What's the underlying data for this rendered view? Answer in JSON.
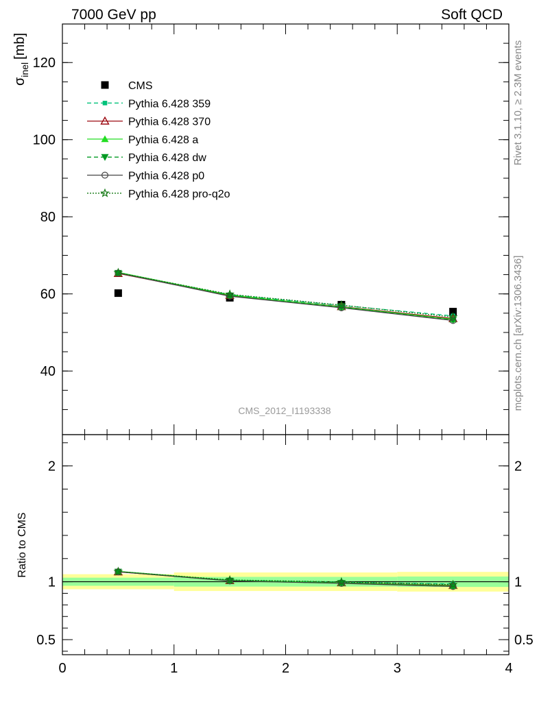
{
  "header": {
    "left": "7000 GeV pp",
    "right": "Soft QCD"
  },
  "side": {
    "rivet": "Rivet 3.1.10, ≥ 2.3M events",
    "mcplots": "mcplots.cern.ch [arXiv:1306.3436]"
  },
  "analysis_id": "CMS_2012_I1193338",
  "colors": {
    "band_inner": "#99ff99",
    "band_outer": "#ffff99",
    "cms": "#000000",
    "p359": "#00c27a",
    "p370": "#9c0a12",
    "pa": "#22dd22",
    "pdw": "#009922",
    "pp0": "#444444",
    "pq2o": "#117711"
  },
  "chart_data": [
    {
      "type": "scatter",
      "panel": "main",
      "ylabel_main": "σ",
      "ylabel_sub": "inel",
      "ylabel_unit": "[mb]",
      "xlim": [
        0,
        4
      ],
      "ylim": [
        23.5,
        130
      ],
      "yticks": [
        40,
        60,
        80,
        100,
        120
      ],
      "legend_position": "top-left",
      "series": [
        {
          "name": "CMS",
          "x": [
            0.5,
            1.5,
            2.5,
            3.5
          ],
          "y": [
            60.2,
            59.0,
            57.2,
            55.4
          ],
          "style": "data",
          "color_key": "cms"
        },
        {
          "name": "Pythia 6.428 359",
          "x": [
            0.5,
            1.5,
            2.5,
            3.5
          ],
          "y": [
            65.5,
            59.8,
            57.0,
            54.3
          ],
          "style": "mc",
          "dash": "6,4",
          "marker": "square",
          "color_key": "p359"
        },
        {
          "name": "Pythia 6.428 370",
          "x": [
            0.5,
            1.5,
            2.5,
            3.5
          ],
          "y": [
            65.3,
            59.6,
            56.7,
            53.6
          ],
          "style": "mc",
          "dash": "",
          "marker": "triangle-open",
          "color_key": "p370"
        },
        {
          "name": "Pythia 6.428 a",
          "x": [
            0.5,
            1.5,
            2.5,
            3.5
          ],
          "y": [
            65.6,
            59.7,
            56.6,
            53.4
          ],
          "style": "mc",
          "dash": "",
          "marker": "triangle",
          "color_key": "pa"
        },
        {
          "name": "Pythia 6.428 dw",
          "x": [
            0.5,
            1.5,
            2.5,
            3.5
          ],
          "y": [
            65.4,
            59.5,
            56.5,
            53.2
          ],
          "style": "mc",
          "dash": "6,4",
          "marker": "triangle-down",
          "color_key": "pdw"
        },
        {
          "name": "Pythia 6.428 p0",
          "x": [
            0.5,
            1.5,
            2.5,
            3.5
          ],
          "y": [
            65.4,
            59.4,
            56.4,
            53.1
          ],
          "style": "mc",
          "dash": "",
          "marker": "circle-open",
          "color_key": "pp0"
        },
        {
          "name": "Pythia 6.428 pro-q2o",
          "x": [
            0.5,
            1.5,
            2.5,
            3.5
          ],
          "y": [
            65.5,
            59.9,
            57.1,
            54.0
          ],
          "style": "mc",
          "dash": "2,2",
          "marker": "star",
          "color_key": "pq2o"
        }
      ]
    },
    {
      "type": "scatter",
      "panel": "ratio",
      "ylabel": "Ratio to CMS",
      "xlim": [
        0,
        4
      ],
      "ylim": [
        0.37,
        2.27
      ],
      "yticks": [
        0.5,
        1,
        2
      ],
      "xticks": [
        0,
        1,
        2,
        3,
        4
      ],
      "bands": [
        {
          "x0": 0.0,
          "x1": 1.0,
          "inner": [
            0.965,
            1.035
          ],
          "outer": [
            0.935,
            1.065
          ]
        },
        {
          "x0": 1.0,
          "x1": 2.0,
          "inner": [
            0.958,
            1.042
          ],
          "outer": [
            0.92,
            1.08
          ]
        },
        {
          "x0": 2.0,
          "x1": 3.0,
          "inner": [
            0.958,
            1.042
          ],
          "outer": [
            0.92,
            1.08
          ]
        },
        {
          "x0": 3.0,
          "x1": 4.0,
          "inner": [
            0.955,
            1.045
          ],
          "outer": [
            0.915,
            1.085
          ]
        }
      ],
      "series": [
        {
          "name": "Pythia 6.428 359",
          "x": [
            0.5,
            1.5,
            2.5,
            3.5
          ],
          "y": [
            1.087,
            1.014,
            0.997,
            0.98
          ],
          "dash": "6,4",
          "marker": "square",
          "color_key": "p359"
        },
        {
          "name": "Pythia 6.428 370",
          "x": [
            0.5,
            1.5,
            2.5,
            3.5
          ],
          "y": [
            1.085,
            1.01,
            0.991,
            0.968
          ],
          "dash": "",
          "marker": "triangle-open",
          "color_key": "p370"
        },
        {
          "name": "Pythia 6.428 a",
          "x": [
            0.5,
            1.5,
            2.5,
            3.5
          ],
          "y": [
            1.09,
            1.012,
            0.99,
            0.964
          ],
          "dash": "",
          "marker": "triangle",
          "color_key": "pa"
        },
        {
          "name": "Pythia 6.428 dw",
          "x": [
            0.5,
            1.5,
            2.5,
            3.5
          ],
          "y": [
            1.086,
            1.008,
            0.988,
            0.961
          ],
          "dash": "6,4",
          "marker": "triangle-down",
          "color_key": "pdw"
        },
        {
          "name": "Pythia 6.428 p0",
          "x": [
            0.5,
            1.5,
            2.5,
            3.5
          ],
          "y": [
            1.086,
            1.007,
            0.986,
            0.959
          ],
          "dash": "",
          "marker": "circle-open",
          "color_key": "pp0"
        },
        {
          "name": "Pythia 6.428 pro-q2o",
          "x": [
            0.5,
            1.5,
            2.5,
            3.5
          ],
          "y": [
            1.088,
            1.015,
            0.998,
            0.975
          ],
          "dash": "2,2",
          "marker": "star",
          "color_key": "pq2o"
        }
      ]
    }
  ]
}
